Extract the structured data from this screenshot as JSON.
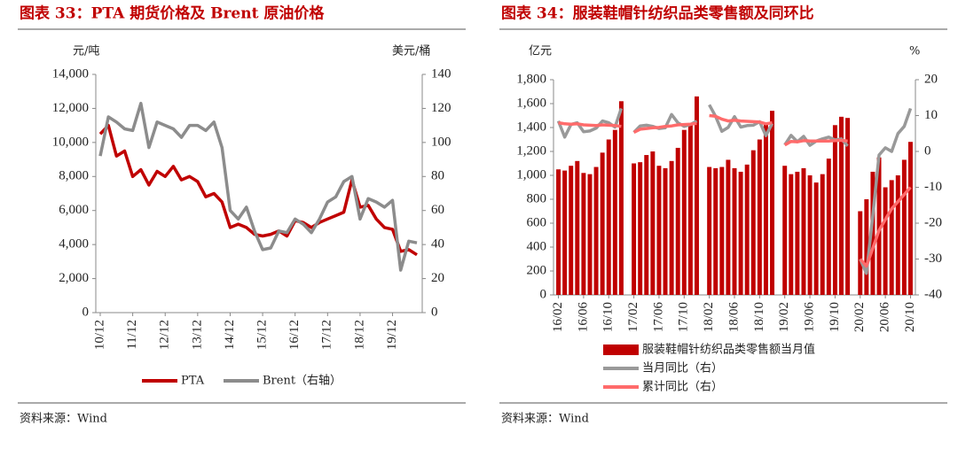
{
  "chart_data": [
    {
      "type": "line",
      "title": "图表 33：PTA 期货价格及 Brent 原油价格",
      "y_label": "元/吨",
      "y2_label": "美元/桶",
      "source": "资料来源：Wind",
      "categories": [
        "10/12",
        null,
        null,
        null,
        "11/12",
        null,
        null,
        null,
        "12/12",
        null,
        null,
        null,
        "13/12",
        null,
        null,
        null,
        "14/12",
        null,
        null,
        null,
        "15/12",
        null,
        null,
        null,
        "16/12",
        null,
        null,
        null,
        "17/12",
        null,
        null,
        null,
        "18/12",
        null,
        null,
        null,
        "19/12",
        null,
        null,
        null
      ],
      "series": [
        {
          "name": "PTA",
          "color": "#c00000",
          "values": [
            10500,
            11000,
            9200,
            9500,
            8000,
            8400,
            7500,
            8300,
            8000,
            8600,
            7800,
            8000,
            7700,
            6800,
            7000,
            6500,
            5000,
            5200,
            5000,
            4600,
            4500,
            4600,
            4800,
            4500,
            5400,
            5300,
            5000,
            5300,
            5500,
            5700,
            5900,
            7800,
            6200,
            6300,
            5500,
            5000,
            4900,
            3600,
            3700,
            3400
          ]
        },
        {
          "name": "Brent（右轴）",
          "color": "#8c8c8c",
          "axis": "y2",
          "values": [
            92,
            115,
            112,
            108,
            107,
            123,
            97,
            112,
            110,
            108,
            103,
            110,
            110,
            107,
            112,
            97,
            60,
            55,
            62,
            48,
            37,
            38,
            48,
            47,
            55,
            52,
            47,
            55,
            65,
            68,
            77,
            80,
            55,
            67,
            65,
            62,
            66,
            25,
            42,
            41
          ]
        }
      ],
      "ylim": [
        0,
        14000
      ],
      "yticks": [
        0,
        {
          "value": 2000,
          "label": "2,000"
        },
        {
          "value": 4000,
          "label": "4,000"
        },
        {
          "value": 6000,
          "label": "6,000"
        },
        {
          "value": 8000,
          "label": "8,000"
        },
        {
          "value": 10000,
          "label": "10,000"
        },
        {
          "value": 12000,
          "label": "12,000"
        },
        {
          "value": 14000,
          "label": "14,000"
        }
      ],
      "y2lim": [
        0,
        140
      ],
      "y2ticks": [
        0,
        20,
        40,
        60,
        80,
        100,
        120,
        140
      ],
      "legend": "bottom"
    },
    {
      "type": "bar",
      "title": "图表 34：服装鞋帽针纺织品类零售额及同环比",
      "y_label": "亿元",
      "y2_label": "%",
      "source": "资料来源：Wind",
      "categories": [
        "16/02",
        null,
        null,
        null,
        "16/06",
        null,
        null,
        null,
        "16/10",
        null,
        null,
        null,
        "17/02",
        null,
        null,
        null,
        "17/06",
        null,
        null,
        null,
        "17/10",
        null,
        null,
        null,
        "18/02",
        null,
        null,
        null,
        "18/06",
        null,
        null,
        null,
        "18/10",
        null,
        null,
        null,
        "19/02",
        null,
        null,
        null,
        "19/06",
        null,
        null,
        null,
        "19/10",
        null,
        null,
        null,
        "20/02",
        null,
        null,
        null,
        "20/06",
        null,
        null,
        null,
        "20/10"
      ],
      "series": [
        {
          "name": "服装鞋帽针纺织品类零售额当月值",
          "type": "bar",
          "color": "#c00000",
          "values": [
            1050,
            1040,
            1080,
            1120,
            1020,
            1010,
            1070,
            1190,
            1300,
            1380,
            1620,
            null,
            1100,
            1110,
            1170,
            1200,
            1080,
            1060,
            1120,
            1230,
            1380,
            1430,
            1660,
            null,
            1070,
            1060,
            1070,
            1130,
            1060,
            1030,
            1090,
            1210,
            1300,
            1440,
            1540,
            null,
            1080,
            1010,
            1030,
            1060,
            1000,
            940,
            1010,
            1140,
            1420,
            1490,
            1480,
            null,
            700,
            800,
            1030,
            1150,
            900,
            960,
            1000,
            1130,
            1280
          ]
        },
        {
          "name": "当月同比（右）",
          "type": "line",
          "color": "#999999",
          "axis": "y2",
          "values": [
            8.5,
            4,
            7.5,
            8,
            5.5,
            5.7,
            6.5,
            8.5,
            8,
            6.8,
            12,
            null,
            5.3,
            7.1,
            7.3,
            7,
            6.4,
            6.6,
            10.3,
            8,
            7,
            7.5,
            8.5,
            null,
            13,
            9.8,
            5.6,
            6.7,
            9.7,
            6.8,
            7.2,
            7.3,
            8.3,
            4.4,
            7.8,
            null,
            1.8,
            4.5,
            2.7,
            4.2,
            1.7,
            2.9,
            3.5,
            4,
            3.2,
            3.5,
            1.5,
            null,
            -30,
            -34,
            -18,
            -1,
            1,
            0,
            5,
            7,
            12
          ]
        },
        {
          "name": "累计同比（右）",
          "type": "line",
          "color": "#ff6b6b",
          "axis": "y2",
          "values": [
            8,
            7.7,
            7.6,
            7.7,
            7.4,
            7.3,
            7.2,
            7.4,
            7.3,
            7.2,
            7,
            null,
            5.3,
            6.2,
            6.4,
            6.6,
            6.7,
            7,
            7.1,
            7.4,
            7.5,
            7.6,
            7.8,
            null,
            10,
            9.8,
            9,
            8.5,
            8.7,
            8.5,
            8.4,
            8.3,
            8.2,
            7.7,
            8,
            null,
            1.8,
            2.8,
            2.7,
            3,
            2.9,
            2.9,
            2.9,
            2.9,
            3,
            3.1,
            2.9,
            null,
            -30,
            -32,
            -27,
            -22,
            -19,
            -16,
            -14,
            -12,
            -10
          ]
        }
      ],
      "ylim": [
        0,
        1800
      ],
      "yticks": [
        0,
        200,
        400,
        600,
        800,
        {
          "value": 1000,
          "label": "1,000"
        },
        {
          "value": 1200,
          "label": "1,200"
        },
        {
          "value": 1400,
          "label": "1,400"
        },
        {
          "value": 1600,
          "label": "1,600"
        },
        {
          "value": 1800,
          "label": "1,800"
        }
      ],
      "y2lim": [
        -40,
        20
      ],
      "y2ticks": [
        -40,
        -30,
        -20,
        -10,
        0,
        10,
        20
      ],
      "legend": "bottom"
    }
  ]
}
